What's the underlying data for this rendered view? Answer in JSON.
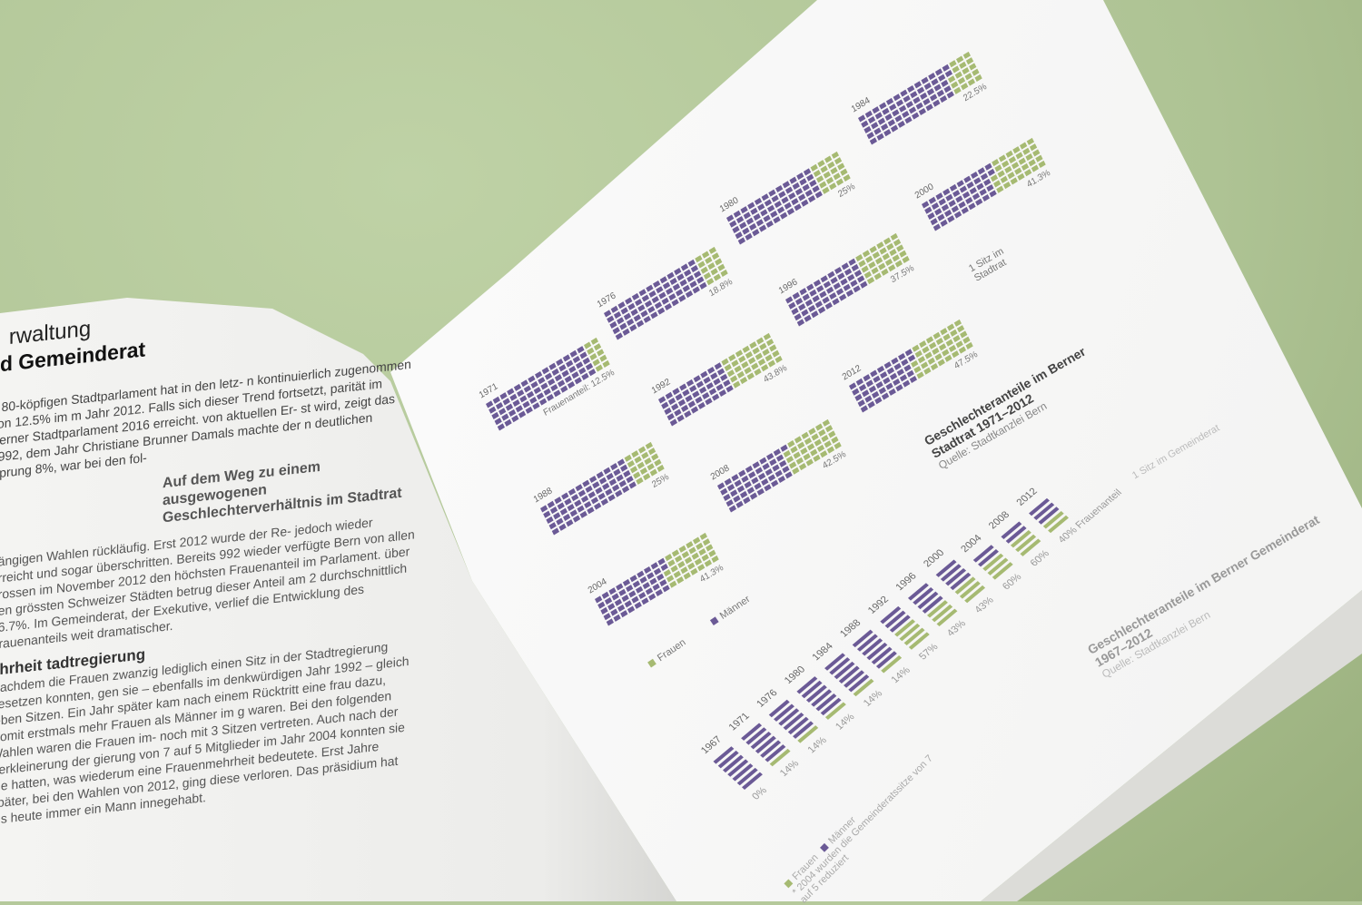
{
  "left_page": {
    "heading_line1": "rwaltung",
    "heading_line2": "d Gemeinderat",
    "paragraph1": "n 80-köpfigen Stadtparlament hat in den letz- n kontinuierlich zugenommen von 12.5% im m Jahr 2012. Falls sich dieser Trend fortsetzt, parität im Berner Stadtparlament 2016 erreicht. von aktuellen Er- st wird, zeigt das 1992, dem Jahr Christiane Brunner Damals machte der n deutlichen Sprung 8%, war bei den fol-",
    "subheading": "Auf dem Weg zu einem ausgewogenen Geschlechterverhältnis im Stadtrat",
    "paragraph2": "gängigen Wahlen rückläufig. Erst 2012 wurde der Re- jedoch wieder erreicht und sogar überschritten. Bereits 992 wieder verfügte Bern von allen grossen im November 2012 den höchsten Frauenanteil im Parlament. über den grössten Schweizer Städten betrug dieser Anteil am 2 durchschnittlich 36.7%. Im Gemeinderat, der Exekutive, verlief die Entwicklung des Frauenanteils weit dramatischer.",
    "heading3": "ehrheit tadtregierung",
    "paragraph3": "Nachdem die Frauen zwanzig lediglich einen Sitz in der Stadtregierung besetzen konnten, gen sie – ebenfalls im denkwürdigen Jahr 1992 – gleich ieben Sitzen. Ein Jahr später kam nach einem Rücktritt eine frau dazu, womit erstmals mehr Frauen als Männer im g waren. Bei den folgenden Wahlen waren die Frauen im- noch mit 3 Sitzen vertreten. Auch nach der Verkleinerung der gierung von 7 auf 5 Mitglieder im Jahr 2004 konnten sie die hatten, was wiederum eine Frauenmehrheit bedeutete. Erst Jahre später, bei den Wahlen von 2012, ging diese verloren. Das präsidium hat bis heute immer ein Mann innegehabt."
  },
  "colors": {
    "men": "#6b5a96",
    "women": "#a6ba72",
    "background": "#b5c99b"
  },
  "chart_data": [
    {
      "type": "waffle",
      "title": "Geschlechteranteile im Berner Stadtrat 1971–2012",
      "source": "Quelle: Stadtkanzlei Bern",
      "seat_note": "1 Sitz im Stadtrat",
      "share_label": "Frauenanteil:",
      "total_seats": 80,
      "legend": [
        "Frauen",
        "Männer"
      ],
      "categories": [
        "1971",
        "1976",
        "1980",
        "1984",
        "1988",
        "1992",
        "1996",
        "2000",
        "2004",
        "2008",
        "2012"
      ],
      "values": [
        12.5,
        18.8,
        25,
        22.5,
        25,
        43.8,
        37.5,
        41.3,
        41.3,
        42.5,
        47.5
      ],
      "labels": [
        "12.5%",
        "18.8%",
        "25%",
        "22.5%",
        "25%",
        "43.8%",
        "37.5%",
        "41.3%",
        "41.3%",
        "42.5%",
        "47.5%"
      ]
    },
    {
      "type": "bar",
      "title": "Geschlechteranteile im Berner Gemeinderat 1967–2012",
      "source": "Quelle: Stadtkanzlei Bern",
      "seat_note": "1 Sitz im Gemeinderat",
      "share_label": "Frauenanteil",
      "legend": [
        "Frauen",
        "Männer"
      ],
      "footnote": "* 2004 wurden die Gemeinderatssitze von 7 auf 5 reduziert",
      "categories": [
        "1967",
        "1971",
        "1976",
        "1980",
        "1984",
        "1988",
        "1992",
        "1996",
        "2000",
        "2004",
        "2008",
        "2012"
      ],
      "seats_total": [
        7,
        7,
        7,
        7,
        7,
        7,
        7,
        7,
        7,
        5,
        5,
        5
      ],
      "seats_women": [
        0,
        1,
        1,
        1,
        1,
        1,
        4,
        3,
        3,
        3,
        3,
        2
      ],
      "labels": [
        "0%",
        "14%",
        "14%",
        "14%",
        "14%",
        "14%",
        "57%",
        "43%",
        "43%",
        "60%",
        "60%",
        "40%"
      ]
    }
  ]
}
